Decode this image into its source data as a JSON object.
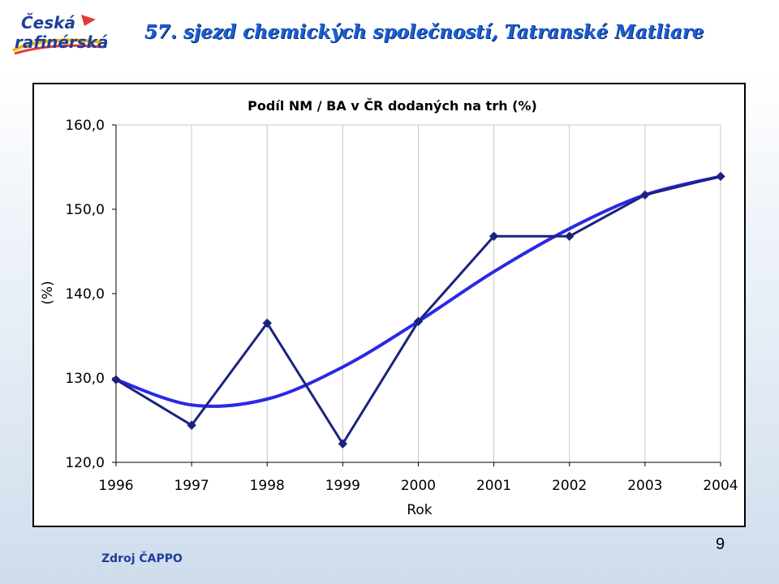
{
  "header": {
    "logo_line1": "Česká",
    "logo_line2": "rafinérská",
    "title": "57. sjezd chemických společností, Tatranské Matliare"
  },
  "footer": {
    "source": "Zdroj ČAPPO",
    "page_number": "9"
  },
  "colors": {
    "data_line": "#1a237e",
    "trend_line": "#2a28e6",
    "title_blue": "#1b5fd6",
    "logo_blue": "#1e3f9a"
  },
  "chart_data": {
    "type": "line",
    "title": "Podíl NM / BA v ČR dodaných na trh (%)",
    "xlabel": "Rok",
    "ylabel": "(%)",
    "categories": [
      "1996",
      "1997",
      "1998",
      "1999",
      "2000",
      "2001",
      "2002",
      "2003",
      "2004"
    ],
    "ylim": [
      120,
      160
    ],
    "yticks": [
      "120,0",
      "130,0",
      "140,0",
      "150,0",
      "160,0"
    ],
    "yticks_values": [
      120,
      130,
      140,
      150,
      160
    ],
    "grid": "vertical",
    "legend": "none",
    "series": [
      {
        "values": [
          129.8,
          124.4,
          136.5,
          122.2,
          136.7,
          146.8,
          146.8,
          151.7,
          153.9
        ],
        "marker": "diamond",
        "color": "#1a237e"
      },
      {
        "values": [
          129.8,
          126.8,
          127.5,
          131.3,
          136.7,
          142.6,
          147.7,
          151.7,
          153.9
        ],
        "marker": "none",
        "smooth": true,
        "color": "#2a28e6"
      }
    ]
  }
}
